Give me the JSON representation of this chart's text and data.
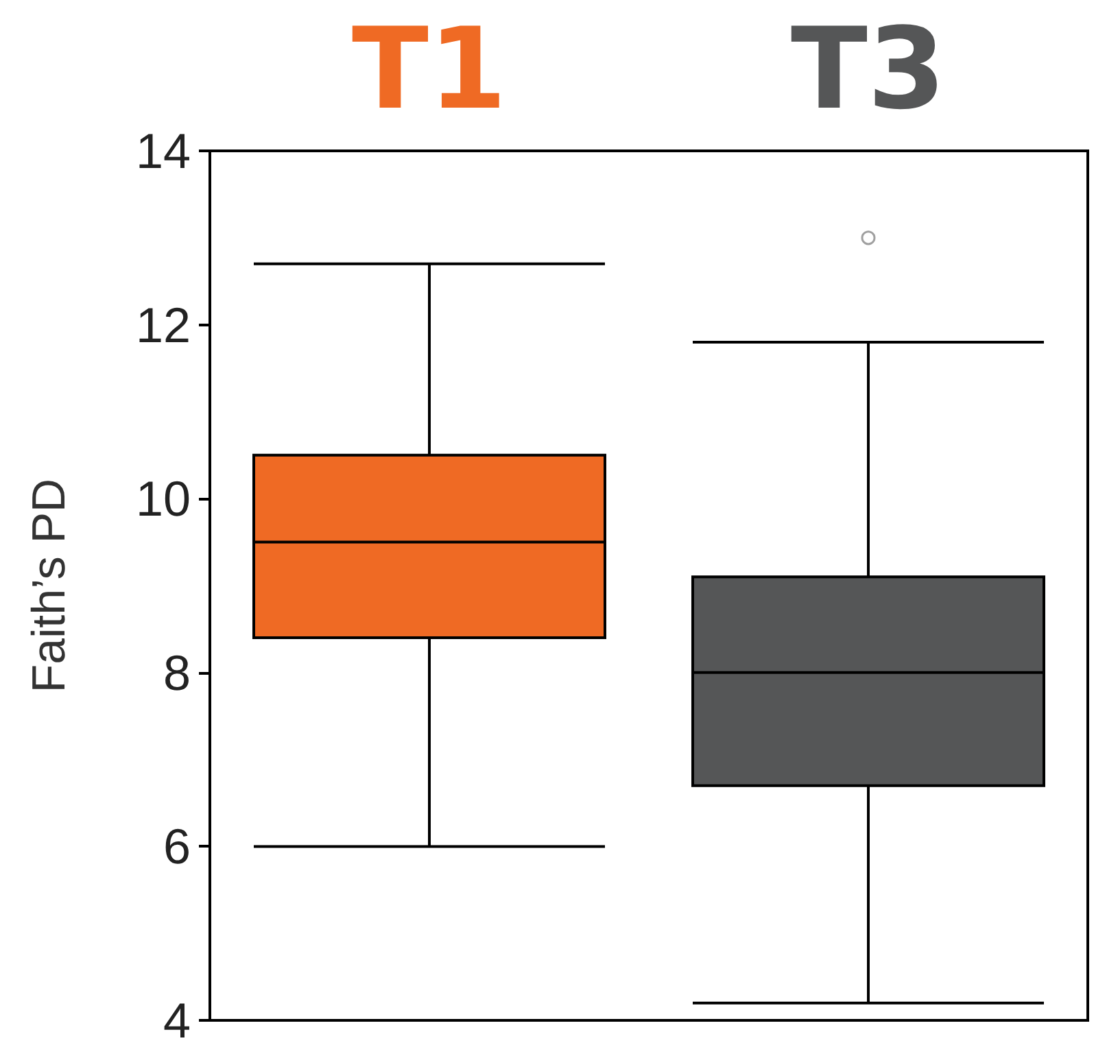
{
  "chart_data": {
    "type": "box",
    "ylabel": "Faith’s PD",
    "categories": [
      "T1",
      "T3"
    ],
    "boxes": [
      {
        "low": 6.0,
        "q1": 8.4,
        "median": 9.5,
        "q3": 10.5,
        "high": 12.7
      },
      {
        "low": 4.2,
        "q1": 6.7,
        "median": 8.0,
        "q3": 9.1,
        "high": 11.8,
        "outliers": [
          13.0
        ]
      }
    ],
    "colors": [
      "#ef6a24",
      "#555657"
    ],
    "ylim": [
      4,
      14
    ],
    "yticks": [
      4,
      6,
      8,
      10,
      12,
      14
    ],
    "grid": false
  }
}
